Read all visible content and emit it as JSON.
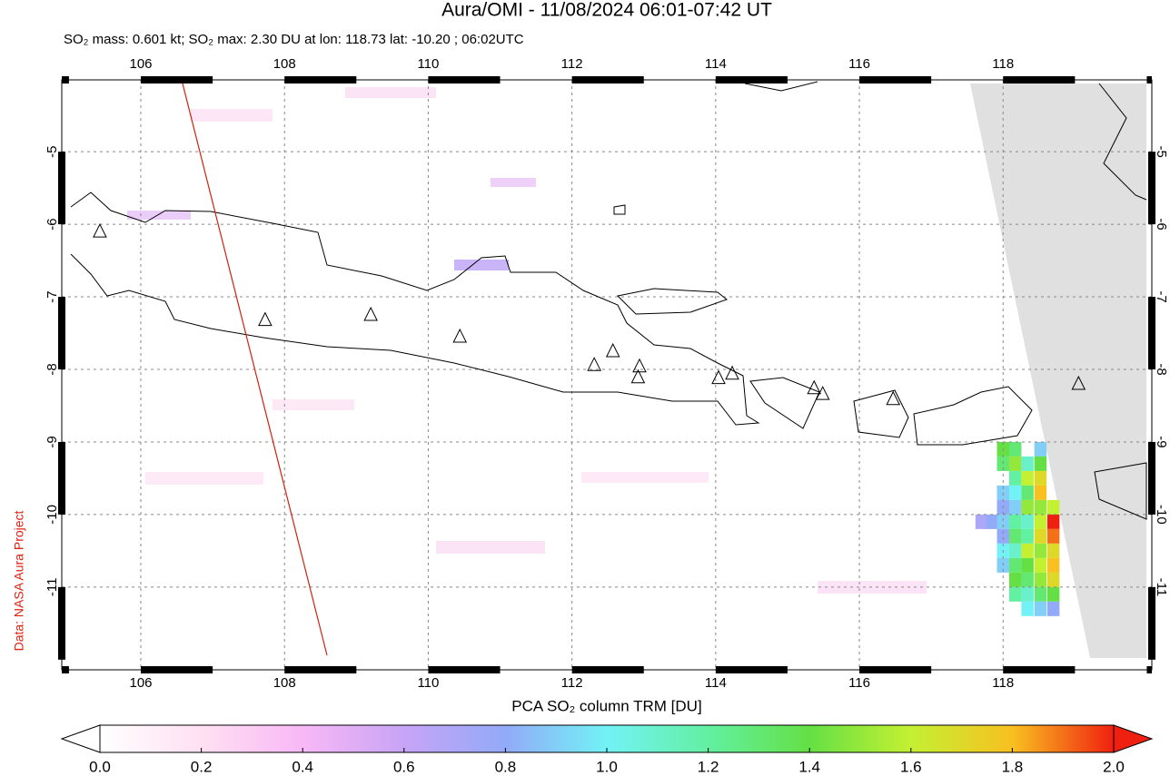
{
  "chart_data": {
    "type": "map",
    "title": "Aura/OMI - 11/08/2024 06:01-07:42 UT",
    "subtitle": "SO₂ mass: 0.601 kt; SO₂ max: 2.30 DU at lon: 118.73 lat: -10.20 ; 06:02UTC",
    "credit": "Data: NASA Aura Project",
    "xlim": [
      104.9,
      120.07
    ],
    "ylim": [
      -12.14,
      -4.01
    ],
    "xticks": [
      106,
      108,
      110,
      112,
      114,
      116,
      118
    ],
    "yticks": [
      -5,
      -6,
      -7,
      -8,
      -9,
      -10,
      -11
    ],
    "grid": true,
    "colorbar": {
      "label": "PCA SO₂ column TRM [DU]",
      "lim": [
        0,
        2
      ],
      "ticks": [
        {
          "value": 0,
          "label": "0.0"
        },
        {
          "value": 0.2,
          "label": "0.2"
        },
        {
          "value": 0.4,
          "label": "0.4"
        },
        {
          "value": 0.6,
          "label": "0.6"
        },
        {
          "value": 0.8,
          "label": "0.8"
        },
        {
          "value": 1,
          "label": "1.0"
        },
        {
          "value": 1.2,
          "label": "1.2"
        },
        {
          "value": 1.4,
          "label": "1.4"
        },
        {
          "value": 1.6,
          "label": "1.6"
        },
        {
          "value": 1.8,
          "label": "1.8"
        },
        {
          "value": 2,
          "label": "2.0"
        }
      ],
      "colors": [
        "#ffffff",
        "#ffe0f2",
        "#f8b8f6",
        "#c8a4f6",
        "#92aaf8",
        "#72f2f6",
        "#62f0a2",
        "#64e044",
        "#c4f032",
        "#f8c020",
        "#f02010"
      ]
    },
    "pixels": {
      "lon": [
        118.0,
        118.17,
        118.52,
        118.0,
        118.17,
        118.34,
        118.52,
        118.17,
        118.34,
        118.52,
        118.0,
        118.17,
        118.34,
        118.52,
        118.0,
        118.17,
        118.34,
        118.52,
        118.7,
        117.7,
        117.85,
        118.0,
        118.17,
        118.34,
        118.52,
        118.7,
        118.0,
        118.17,
        118.34,
        118.52,
        118.7,
        118.0,
        118.17,
        118.34,
        118.52,
        118.7,
        118.0,
        118.17,
        118.34,
        118.52,
        118.7,
        118.17,
        118.34,
        118.52,
        118.7,
        118.17,
        118.34,
        118.52,
        118.7,
        118.34,
        118.52,
        118.7
      ],
      "lat": [
        -9.1,
        -9.1,
        -9.1,
        -9.3,
        -9.3,
        -9.3,
        -9.3,
        -9.5,
        -9.5,
        -9.5,
        -9.7,
        -9.7,
        -9.7,
        -9.7,
        -9.9,
        -9.9,
        -9.9,
        -9.9,
        -9.9,
        -10.1,
        -10.1,
        -10.1,
        -10.1,
        -10.1,
        -10.1,
        -10.1,
        -10.3,
        -10.3,
        -10.3,
        -10.3,
        -10.3,
        -10.5,
        -10.5,
        -10.5,
        -10.5,
        -10.5,
        -10.7,
        -10.7,
        -10.7,
        -10.7,
        -10.7,
        -10.9,
        -10.9,
        -10.9,
        -10.9,
        -11.1,
        -11.1,
        -11.1,
        -11.1,
        -11.3,
        -11.3,
        -11.3
      ],
      "values": [
        1.4,
        1.3,
        0.9,
        1.3,
        1.5,
        1.1,
        1.4,
        1.2,
        1.6,
        1.7,
        0.9,
        1.0,
        1.3,
        1.8,
        0.8,
        0.9,
        1.5,
        1.5,
        1.6,
        0.7,
        0.8,
        0.9,
        1.2,
        1.1,
        1.6,
        2.0,
        0.8,
        1.3,
        1.2,
        1.7,
        1.9,
        1.0,
        1.1,
        1.6,
        1.5,
        1.7,
        0.9,
        1.3,
        1.4,
        1.6,
        1.8,
        1.4,
        1.3,
        1.5,
        1.7,
        1.2,
        1.1,
        1.3,
        1.4,
        1.0,
        0.9,
        0.8
      ]
    },
    "volcanoes": {
      "lon": [
        105.43,
        107.73,
        109.2,
        110.44,
        112.31,
        112.57,
        112.94,
        112.92,
        114.04,
        114.23,
        115.37,
        115.49,
        116.47,
        119.05
      ],
      "lat": [
        -6.1,
        -7.32,
        -7.25,
        -7.55,
        -7.94,
        -7.75,
        -7.96,
        -8.11,
        -8.12,
        -8.06,
        -8.26,
        -8.34,
        -8.41,
        -8.2
      ]
    }
  }
}
